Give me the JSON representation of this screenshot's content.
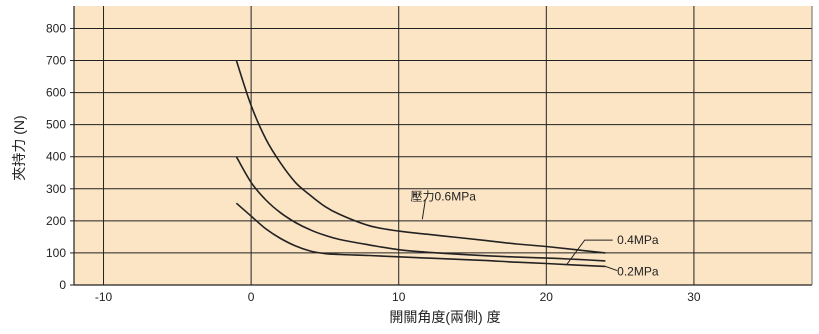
{
  "chart_data": {
    "type": "line",
    "xlabel": "開關角度(兩側) 度",
    "ylabel": "夾持力 (N)",
    "xlim": [
      -12,
      38
    ],
    "ylim": [
      0,
      870
    ],
    "xticks": [
      -10,
      0,
      10,
      20,
      30
    ],
    "yticks": [
      0,
      100,
      200,
      300,
      400,
      500,
      600,
      700,
      800
    ],
    "grid": true,
    "colors": {
      "plot_bg": "#fce5c5",
      "line": "#222222",
      "frame": "#666666"
    },
    "series": [
      {
        "name": "0.6MPa",
        "label": "壓力0.6MPa",
        "x": [
          -1,
          0,
          1,
          2,
          3,
          4,
          5,
          6,
          8,
          10,
          12,
          14,
          16,
          18,
          20,
          22,
          24
        ],
        "y": [
          700,
          560,
          455,
          380,
          320,
          280,
          245,
          220,
          185,
          168,
          158,
          148,
          138,
          128,
          120,
          110,
          100
        ]
      },
      {
        "name": "0.4MPa",
        "label": "0.4MPa",
        "x": [
          -1,
          0,
          1,
          2,
          3,
          4,
          5,
          6,
          8,
          10,
          12,
          14,
          16,
          18,
          20,
          22,
          24
        ],
        "y": [
          400,
          320,
          265,
          225,
          195,
          172,
          155,
          142,
          125,
          110,
          102,
          96,
          91,
          87,
          84,
          80,
          75
        ]
      },
      {
        "name": "0.2MPa",
        "label": "0.2MPa",
        "x": [
          -1,
          0,
          1,
          2,
          3,
          4,
          5,
          6,
          8,
          10,
          12,
          14,
          16,
          18,
          20,
          22,
          24
        ],
        "y": [
          255,
          215,
          175,
          145,
          122,
          106,
          98,
          95,
          92,
          88,
          84,
          80,
          76,
          71,
          67,
          62,
          58
        ]
      }
    ]
  }
}
